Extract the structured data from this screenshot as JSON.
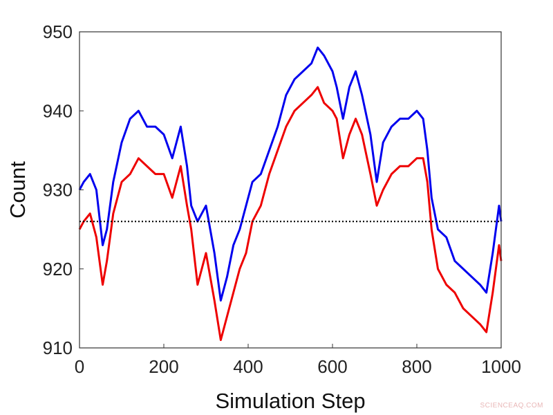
{
  "chart_data": {
    "type": "line",
    "title": "",
    "xlabel": "Simulation Step",
    "ylabel": "Count",
    "xlim": [
      0,
      1000
    ],
    "ylim": [
      910,
      950
    ],
    "xticks": [
      "0",
      "200",
      "400",
      "600",
      "800",
      "1000"
    ],
    "yticks": [
      "910",
      "920",
      "930",
      "940",
      "950"
    ],
    "grid": false,
    "legend": "none",
    "series": [
      {
        "color": "#0000ee",
        "style": "solid",
        "points": [
          [
            0,
            930
          ],
          [
            10,
            931
          ],
          [
            25,
            932
          ],
          [
            40,
            930
          ],
          [
            55,
            923
          ],
          [
            65,
            925
          ],
          [
            80,
            931
          ],
          [
            100,
            936
          ],
          [
            120,
            939
          ],
          [
            140,
            940
          ],
          [
            160,
            938
          ],
          [
            180,
            938
          ],
          [
            200,
            937
          ],
          [
            220,
            934
          ],
          [
            240,
            938
          ],
          [
            255,
            933
          ],
          [
            265,
            928
          ],
          [
            280,
            926
          ],
          [
            300,
            928
          ],
          [
            320,
            922
          ],
          [
            335,
            916
          ],
          [
            350,
            919
          ],
          [
            365,
            923
          ],
          [
            380,
            925
          ],
          [
            395,
            928
          ],
          [
            410,
            931
          ],
          [
            430,
            932
          ],
          [
            450,
            935
          ],
          [
            470,
            938
          ],
          [
            490,
            942
          ],
          [
            510,
            944
          ],
          [
            530,
            945
          ],
          [
            550,
            946
          ],
          [
            565,
            948
          ],
          [
            580,
            947
          ],
          [
            600,
            945
          ],
          [
            610,
            943
          ],
          [
            625,
            939
          ],
          [
            640,
            943
          ],
          [
            655,
            945
          ],
          [
            670,
            942
          ],
          [
            690,
            937
          ],
          [
            705,
            931
          ],
          [
            720,
            936
          ],
          [
            740,
            938
          ],
          [
            760,
            939
          ],
          [
            780,
            939
          ],
          [
            800,
            940
          ],
          [
            815,
            939
          ],
          [
            825,
            935
          ],
          [
            835,
            929
          ],
          [
            850,
            925
          ],
          [
            870,
            924
          ],
          [
            890,
            921
          ],
          [
            910,
            920
          ],
          [
            930,
            919
          ],
          [
            950,
            918
          ],
          [
            965,
            917
          ],
          [
            980,
            922
          ],
          [
            995,
            928
          ],
          [
            1000,
            926
          ]
        ]
      },
      {
        "color": "#ee0000",
        "style": "solid",
        "points": [
          [
            0,
            925
          ],
          [
            10,
            926
          ],
          [
            25,
            927
          ],
          [
            40,
            924
          ],
          [
            55,
            918
          ],
          [
            65,
            921
          ],
          [
            80,
            927
          ],
          [
            100,
            931
          ],
          [
            120,
            932
          ],
          [
            140,
            934
          ],
          [
            160,
            933
          ],
          [
            180,
            932
          ],
          [
            200,
            932
          ],
          [
            220,
            929
          ],
          [
            240,
            933
          ],
          [
            255,
            928
          ],
          [
            265,
            925
          ],
          [
            280,
            918
          ],
          [
            300,
            922
          ],
          [
            320,
            916
          ],
          [
            335,
            911
          ],
          [
            350,
            914
          ],
          [
            365,
            917
          ],
          [
            380,
            920
          ],
          [
            395,
            922
          ],
          [
            410,
            926
          ],
          [
            430,
            928
          ],
          [
            450,
            932
          ],
          [
            470,
            935
          ],
          [
            490,
            938
          ],
          [
            510,
            940
          ],
          [
            530,
            941
          ],
          [
            550,
            942
          ],
          [
            565,
            943
          ],
          [
            580,
            941
          ],
          [
            600,
            940
          ],
          [
            610,
            939
          ],
          [
            625,
            934
          ],
          [
            640,
            937
          ],
          [
            655,
            939
          ],
          [
            670,
            937
          ],
          [
            690,
            932
          ],
          [
            705,
            928
          ],
          [
            720,
            930
          ],
          [
            740,
            932
          ],
          [
            760,
            933
          ],
          [
            780,
            933
          ],
          [
            800,
            934
          ],
          [
            815,
            934
          ],
          [
            825,
            931
          ],
          [
            835,
            925
          ],
          [
            850,
            920
          ],
          [
            870,
            918
          ],
          [
            890,
            917
          ],
          [
            910,
            915
          ],
          [
            930,
            914
          ],
          [
            950,
            913
          ],
          [
            965,
            912
          ],
          [
            980,
            917
          ],
          [
            995,
            923
          ],
          [
            1000,
            921
          ]
        ]
      },
      {
        "color": "#000000",
        "style": "dotted",
        "points": [
          [
            0,
            926
          ],
          [
            1000,
            926
          ]
        ]
      }
    ]
  },
  "watermark": "SCIENCEAQ.COM"
}
